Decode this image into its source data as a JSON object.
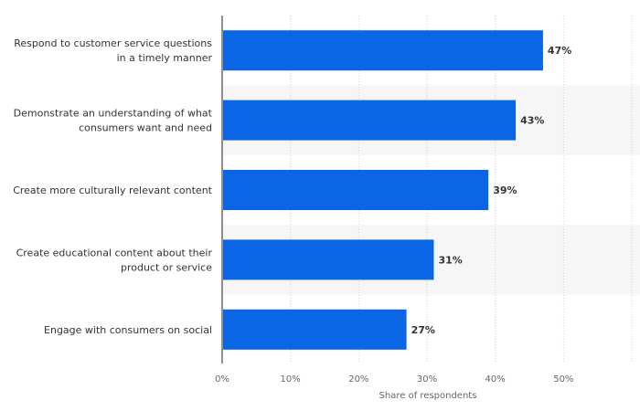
{
  "chart_data": {
    "type": "bar",
    "orientation": "horizontal",
    "categories": [
      [
        "Respond to customer service questions",
        "in a timely manner"
      ],
      [
        "Demonstrate an understanding of what",
        "consumers want and need"
      ],
      [
        "Create more culturally relevant content"
      ],
      [
        "Create educational content about their",
        "product or service"
      ],
      [
        "Engage with consumers on social"
      ]
    ],
    "values": [
      47,
      43,
      39,
      31,
      27
    ],
    "value_labels": [
      "47%",
      "43%",
      "39%",
      "31%",
      "27%"
    ],
    "xlabel": "Share of respondents",
    "xlim": [
      0,
      60
    ],
    "ticks": [
      0,
      10,
      20,
      30,
      40,
      50
    ],
    "tick_labels": [
      "0%",
      "10%",
      "20%",
      "30%",
      "40%",
      "50%"
    ],
    "grid": true,
    "bar_color": "#0a66e4",
    "band_color": "#f6f6f6"
  }
}
